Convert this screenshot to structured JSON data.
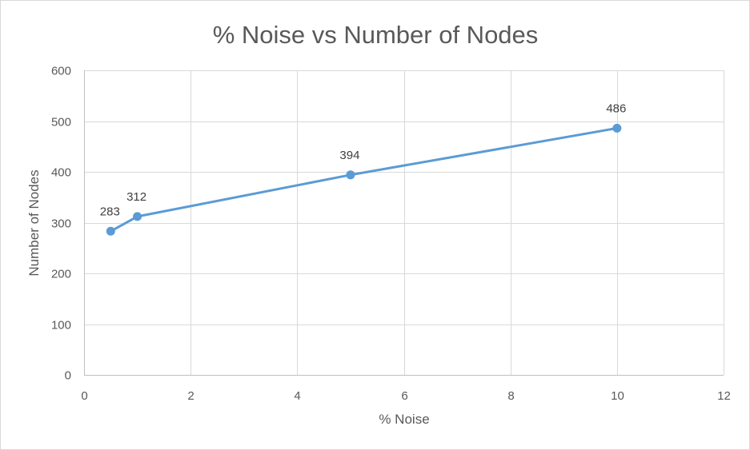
{
  "chart_data": {
    "type": "scatter",
    "title": "% Noise vs Number of Nodes",
    "xlabel": "% Noise",
    "ylabel": "Number of Nodes",
    "xlim": [
      0,
      12
    ],
    "ylim": [
      0,
      600
    ],
    "xticks": [
      0,
      2,
      4,
      6,
      8,
      10,
      12
    ],
    "yticks": [
      0,
      100,
      200,
      300,
      400,
      500,
      600
    ],
    "grid": true,
    "legend": "none",
    "color": "#5b9bd5",
    "series": [
      {
        "x": [
          0.5,
          1,
          5,
          10
        ],
        "y": [
          283,
          312,
          394,
          486
        ],
        "labels": [
          "283",
          "312",
          "394",
          "486"
        ]
      }
    ]
  }
}
